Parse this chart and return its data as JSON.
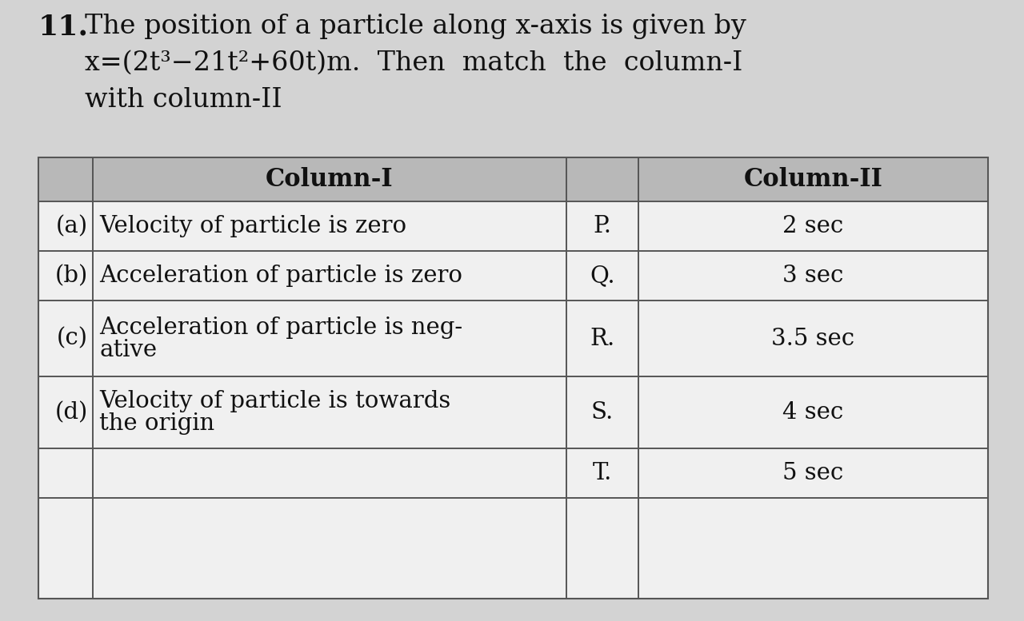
{
  "background_color": "#d3d3d3",
  "question_number": "11.",
  "q_line1": "The position of a particle along x-axis is given by",
  "q_line2": "x=(2t³−21t²+60t)m.  Then  match  the  column-I",
  "q_line3": "with column-II",
  "header_col1": "Column-I",
  "header_col2": "Column-II",
  "table_bg": "#f0f0f0",
  "header_bg": "#b8b8b8",
  "border_color": "#555555",
  "text_color": "#111111",
  "font_size_q_num": 26,
  "font_size_q": 24,
  "font_size_header": 22,
  "font_size_table": 21,
  "row_data": [
    {
      "label": "(a)",
      "text": "Velocity of particle is zero",
      "mid": "P.",
      "col2": "2 sec",
      "multiline": false
    },
    {
      "label": "(b)",
      "text": "Acceleration of particle is zero",
      "mid": "Q.",
      "col2": "3 sec",
      "multiline": false
    },
    {
      "label": "(c)",
      "text": "Acceleration of particle is neg-\native",
      "mid": "R.",
      "col2": "3.5 sec",
      "multiline": true
    },
    {
      "label": "(d)",
      "text": "Velocity of particle is towards\nthe origin",
      "mid": "S.",
      "col2": "4 sec",
      "multiline": true
    },
    {
      "label": "",
      "text": "",
      "mid": "T.",
      "col2": "5 sec",
      "multiline": false
    }
  ]
}
